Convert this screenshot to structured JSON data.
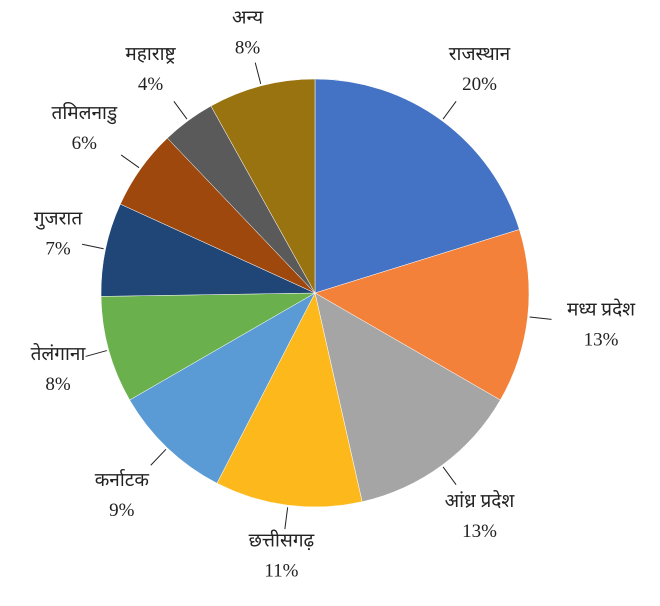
{
  "chart_data": {
    "type": "pie",
    "categories": [
      "राजस्थान",
      "मध्य प्रदेश",
      "आंध्र प्रदेश",
      "छत्तीसगढ़",
      "कर्नाटक",
      "तेलंगाना",
      "गुजरात",
      "तमिलनाडु",
      "महाराष्ट्र",
      "अन्य"
    ],
    "values": [
      20,
      13,
      13,
      11,
      9,
      8,
      7,
      6,
      4,
      8
    ],
    "value_labels": [
      "20%",
      "13%",
      "13%",
      "11%",
      "9%",
      "8%",
      "7%",
      "6%",
      "4%",
      "8%"
    ],
    "colors": [
      "#4472c4",
      "#f4813a",
      "#a5a5a5",
      "#fdb91c",
      "#5b9bd5",
      "#6ab04c",
      "#1f4677",
      "#9e480e",
      "#5a5a5a",
      "#99730f"
    ]
  }
}
